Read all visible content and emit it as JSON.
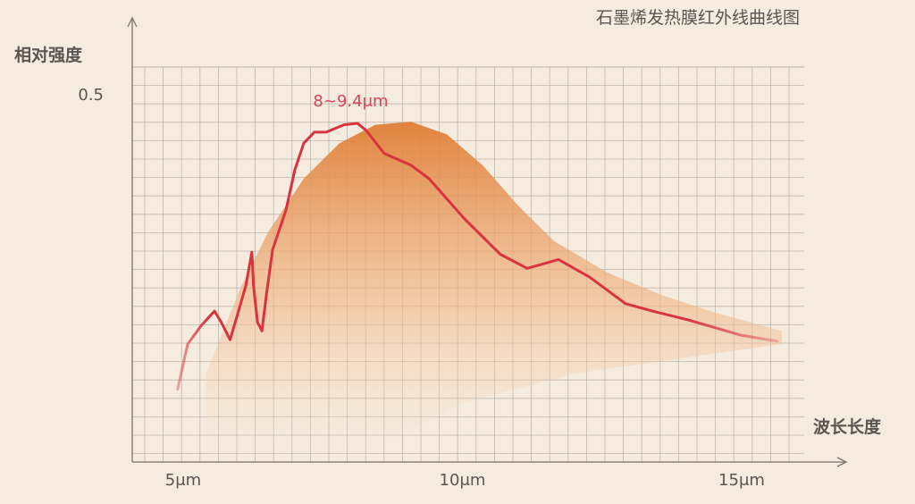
{
  "chart_data": {
    "type": "line",
    "title": "石墨烯发热膜红外线曲线图",
    "ylabel": "相对强度",
    "xlabel": "波长长度",
    "x_ticks": [
      {
        "value": 5,
        "label": "5μm"
      },
      {
        "value": 10,
        "label": "10μm"
      },
      {
        "value": 15,
        "label": "15μm"
      }
    ],
    "y_ticks": [
      {
        "value": 0.5,
        "label": "0.5"
      }
    ],
    "xlim": [
      4.2,
      16.3
    ],
    "ylim": [
      0,
      0.54
    ],
    "grid": true,
    "annotation": {
      "text": "8~9.4μm",
      "x": 8.0,
      "y": 0.49
    },
    "series": [
      {
        "kind": "area",
        "color": "#e58a45",
        "x": [
          5.4,
          6.04,
          6.52,
          7.16,
          7.8,
          8.44,
          9.08,
          9.72,
          10.36,
          11.0,
          11.64,
          12.6,
          13.56,
          14.52,
          15.72
        ],
        "y": [
          0.118,
          0.239,
          0.312,
          0.385,
          0.433,
          0.458,
          0.462,
          0.445,
          0.403,
          0.348,
          0.3,
          0.257,
          0.227,
          0.203,
          0.178
        ]
      },
      {
        "kind": "line",
        "color": "#d8333f",
        "x": [
          4.9,
          5.08,
          5.32,
          5.56,
          5.68,
          5.84,
          5.96,
          6.12,
          6.23,
          6.26,
          6.33,
          6.41,
          6.49,
          6.6,
          6.84,
          7.0,
          7.16,
          7.35,
          7.56,
          7.88,
          8.12,
          8.28,
          8.6,
          9.08,
          9.4,
          10.04,
          10.68,
          11.16,
          11.72,
          12.28,
          12.92,
          13.4,
          14.04,
          15.0,
          15.64
        ],
        "y": [
          0.099,
          0.16,
          0.185,
          0.205,
          0.19,
          0.166,
          0.197,
          0.239,
          0.285,
          0.239,
          0.19,
          0.178,
          0.227,
          0.288,
          0.342,
          0.397,
          0.433,
          0.448,
          0.448,
          0.458,
          0.46,
          0.45,
          0.419,
          0.403,
          0.385,
          0.33,
          0.282,
          0.263,
          0.275,
          0.251,
          0.215,
          0.205,
          0.193,
          0.172,
          0.164
        ]
      }
    ]
  }
}
